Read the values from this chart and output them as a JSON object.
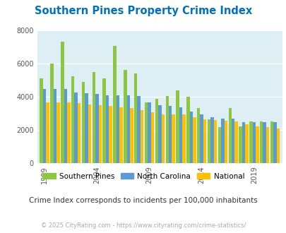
{
  "title": "Southern Pines Property Crime Index",
  "subtitle": "Crime Index corresponds to incidents per 100,000 inhabitants",
  "copyright": "© 2025 CityRating.com - https://www.cityrating.com/crime-statistics/",
  "years": [
    1999,
    2000,
    2001,
    2002,
    2003,
    2004,
    2005,
    2006,
    2007,
    2008,
    2009,
    2010,
    2011,
    2012,
    2013,
    2014,
    2015,
    2016,
    2017,
    2018,
    2019,
    2020,
    2021
  ],
  "southern_pines": [
    5100,
    6000,
    7300,
    5250,
    4900,
    5500,
    5100,
    7050,
    5600,
    5400,
    3650,
    3850,
    4050,
    4400,
    4000,
    3300,
    2650,
    2150,
    3300,
    2200,
    2500,
    2500,
    2500
  ],
  "north_carolina": [
    4450,
    4450,
    4450,
    4250,
    4200,
    4150,
    4100,
    4100,
    4100,
    4050,
    3650,
    3500,
    3450,
    3350,
    3100,
    2950,
    2750,
    2700,
    2700,
    2450,
    2450,
    2450,
    2450
  ],
  "national": [
    3650,
    3650,
    3650,
    3600,
    3550,
    3500,
    3450,
    3350,
    3300,
    3200,
    3050,
    2950,
    2950,
    2950,
    2750,
    2650,
    2600,
    2550,
    2500,
    2350,
    2200,
    2150,
    2100
  ],
  "colors": {
    "southern_pines": "#8dc63f",
    "north_carolina": "#5b9bd5",
    "national": "#ffc000"
  },
  "ylim": [
    0,
    8000
  ],
  "yticks": [
    0,
    2000,
    4000,
    6000,
    8000
  ],
  "xtick_years": [
    1999,
    2004,
    2009,
    2014,
    2019
  ],
  "title_color": "#0070c0",
  "subtitle_color": "#333333",
  "copyright_color": "#aaaaaa",
  "grid_color": "#ffffff",
  "axis_bg": "#ddeef5"
}
